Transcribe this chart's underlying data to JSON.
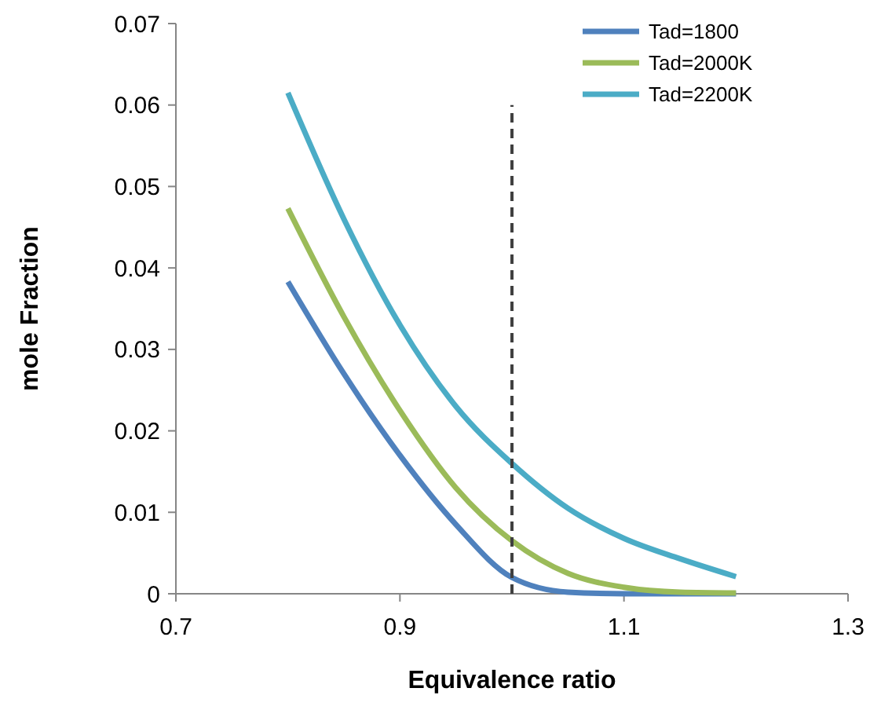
{
  "chart_data": {
    "type": "line",
    "xlabel": "Equivalence ratio",
    "ylabel": "mole Fraction",
    "x": [
      0.8,
      0.85,
      0.9,
      0.95,
      1.0,
      1.05,
      1.1,
      1.15,
      1.2
    ],
    "series": [
      {
        "name": "Tad=1800",
        "color": "#4f81bd",
        "values": [
          0.0383,
          0.027,
          0.017,
          0.0085,
          0.002,
          0.0002,
          0,
          0,
          0
        ]
      },
      {
        "name": "Tad=2000K",
        "color": "#9bbb59",
        "values": [
          0.0473,
          0.034,
          0.0225,
          0.013,
          0.0065,
          0.0025,
          0.0008,
          0.0002,
          0.0001
        ]
      },
      {
        "name": "Tad=2200K",
        "color": "#4bacc6",
        "values": [
          0.0615,
          0.046,
          0.033,
          0.023,
          0.016,
          0.0105,
          0.0068,
          0.0043,
          0.0021
        ]
      },
      {
        "type": "line",
        "color": "#404040",
        "line_style": "dashed",
        "x": [
          1.0,
          1.0
        ],
        "values": [
          0,
          0.06
        ]
      }
    ],
    "xlim": [
      0.7,
      1.3
    ],
    "xticks": [
      0.7,
      0.9,
      1.1,
      1.3
    ],
    "ylim": [
      0,
      0.07
    ],
    "yticks": [
      0,
      0.01,
      0.02,
      0.03,
      0.04,
      0.05,
      0.06,
      0.07
    ],
    "grid": false,
    "legend": "top right",
    "marker": "none",
    "line_style": "solid"
  }
}
